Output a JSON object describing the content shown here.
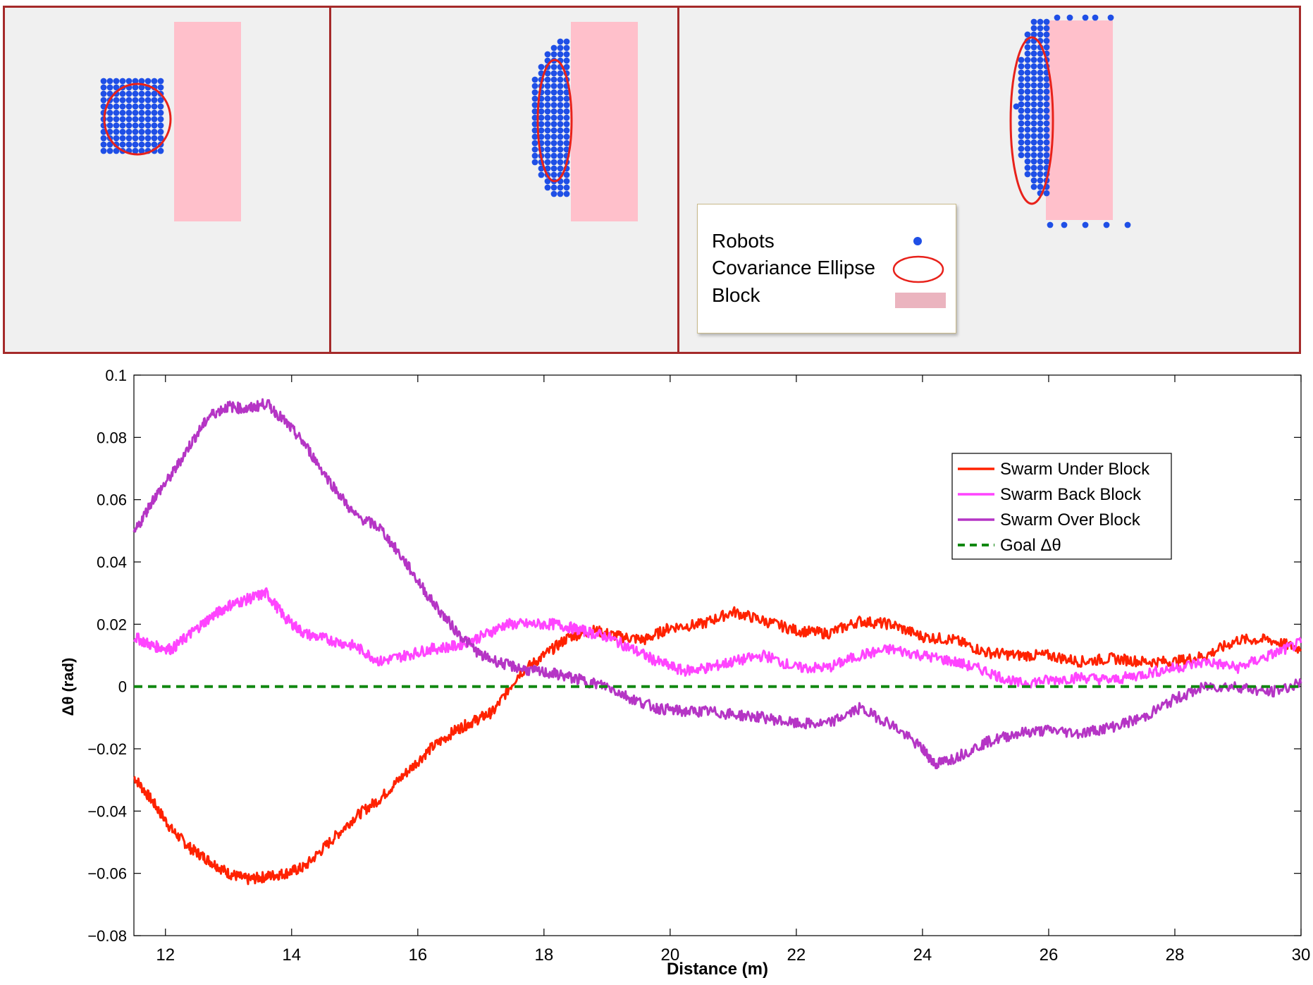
{
  "colors": {
    "robot": "#1f4fe6",
    "ellipse": "#e8221b",
    "block": "#ffc0cb",
    "panel_border": "#a52a2a",
    "panel_bg": "#f0f0f0"
  },
  "snapshot_legend": {
    "robots": "Robots",
    "ellipse": "Covariance Ellipse",
    "block": "Block"
  },
  "chart_data": {
    "type": "line",
    "xlabel": "Distance (m)",
    "ylabel": "Δθ (rad)",
    "xlim": [
      11.5,
      30
    ],
    "ylim": [
      -0.08,
      0.1
    ],
    "xticks": [
      "12",
      "14",
      "16",
      "18",
      "20",
      "22",
      "24",
      "26",
      "28",
      "30"
    ],
    "yticks": [
      "−0.08",
      "−0.06",
      "−0.04",
      "−0.02",
      "0",
      "0.02",
      "0.04",
      "0.06",
      "0.08",
      "0.1"
    ],
    "grid": false,
    "legend_position": "top-right",
    "series": [
      {
        "name": "Swarm Under Block",
        "color": "#ff2200",
        "style": "solid",
        "x": [
          11.5,
          11.8,
          12.1,
          12.4,
          12.7,
          13.0,
          13.3,
          13.6,
          13.9,
          14.2,
          14.6,
          15.0,
          15.4,
          15.8,
          16.2,
          16.6,
          16.9,
          17.2,
          17.6,
          18.0,
          18.4,
          18.8,
          19.2,
          19.6,
          20.0,
          20.5,
          21.0,
          21.5,
          22.0,
          22.5,
          23.0,
          23.5,
          24.0,
          24.5,
          25.0,
          25.5,
          26.0,
          26.5,
          27.0,
          27.5,
          28.0,
          28.5,
          29.0,
          29.5,
          30.0
        ],
        "y": [
          -0.029,
          -0.037,
          -0.046,
          -0.052,
          -0.056,
          -0.06,
          -0.062,
          -0.061,
          -0.06,
          -0.058,
          -0.05,
          -0.042,
          -0.036,
          -0.028,
          -0.02,
          -0.014,
          -0.011,
          -0.008,
          0.004,
          0.01,
          0.016,
          0.018,
          0.016,
          0.015,
          0.019,
          0.02,
          0.024,
          0.021,
          0.018,
          0.017,
          0.021,
          0.02,
          0.016,
          0.015,
          0.011,
          0.01,
          0.01,
          0.008,
          0.009,
          0.008,
          0.008,
          0.01,
          0.015,
          0.015,
          0.012
        ]
      },
      {
        "name": "Swarm Back Block",
        "color": "#ff44ff",
        "style": "solid",
        "x": [
          11.5,
          11.8,
          12.1,
          12.4,
          12.7,
          13.0,
          13.3,
          13.6,
          13.9,
          14.2,
          14.6,
          15.0,
          15.4,
          15.8,
          16.2,
          16.6,
          17.0,
          17.4,
          17.8,
          18.2,
          18.6,
          19.0,
          19.4,
          19.8,
          20.2,
          20.6,
          21.0,
          21.5,
          22.0,
          22.5,
          23.0,
          23.5,
          24.0,
          24.5,
          25.0,
          25.5,
          26.0,
          26.5,
          27.0,
          27.5,
          28.0,
          28.5,
          29.0,
          29.5,
          30.0
        ],
        "y": [
          0.016,
          0.013,
          0.012,
          0.017,
          0.022,
          0.026,
          0.028,
          0.03,
          0.022,
          0.017,
          0.015,
          0.013,
          0.008,
          0.01,
          0.012,
          0.013,
          0.016,
          0.02,
          0.02,
          0.02,
          0.018,
          0.016,
          0.012,
          0.008,
          0.005,
          0.006,
          0.008,
          0.01,
          0.006,
          0.006,
          0.01,
          0.012,
          0.01,
          0.008,
          0.005,
          0.001,
          0.002,
          0.003,
          0.002,
          0.004,
          0.006,
          0.008,
          0.006,
          0.01,
          0.014
        ]
      },
      {
        "name": "Swarm Over Block",
        "color": "#b535c5",
        "style": "solid",
        "x": [
          11.5,
          11.8,
          12.1,
          12.4,
          12.7,
          13.0,
          13.3,
          13.6,
          13.9,
          14.2,
          14.6,
          15.0,
          15.4,
          15.8,
          16.2,
          16.6,
          17.0,
          17.4,
          17.8,
          18.2,
          18.6,
          19.0,
          19.4,
          19.8,
          20.2,
          20.6,
          21.0,
          21.5,
          22.0,
          22.5,
          23.0,
          23.5,
          24.0,
          24.2,
          24.5,
          25.0,
          25.5,
          26.0,
          26.5,
          27.0,
          27.5,
          28.0,
          28.5,
          29.0,
          29.5,
          30.0
        ],
        "y": [
          0.049,
          0.06,
          0.068,
          0.078,
          0.087,
          0.09,
          0.089,
          0.091,
          0.085,
          0.078,
          0.066,
          0.055,
          0.051,
          0.04,
          0.028,
          0.018,
          0.01,
          0.007,
          0.005,
          0.004,
          0.002,
          0.0,
          -0.004,
          -0.007,
          -0.008,
          -0.008,
          -0.009,
          -0.01,
          -0.012,
          -0.012,
          -0.007,
          -0.012,
          -0.02,
          -0.025,
          -0.023,
          -0.018,
          -0.015,
          -0.014,
          -0.015,
          -0.013,
          -0.01,
          -0.004,
          0.0,
          0.0,
          -0.002,
          0.001
        ]
      },
      {
        "name": "Goal Δθ",
        "color": "#118811",
        "style": "dashed",
        "x": [
          11.5,
          30.0
        ],
        "y": [
          0.0,
          0.0
        ]
      }
    ]
  }
}
